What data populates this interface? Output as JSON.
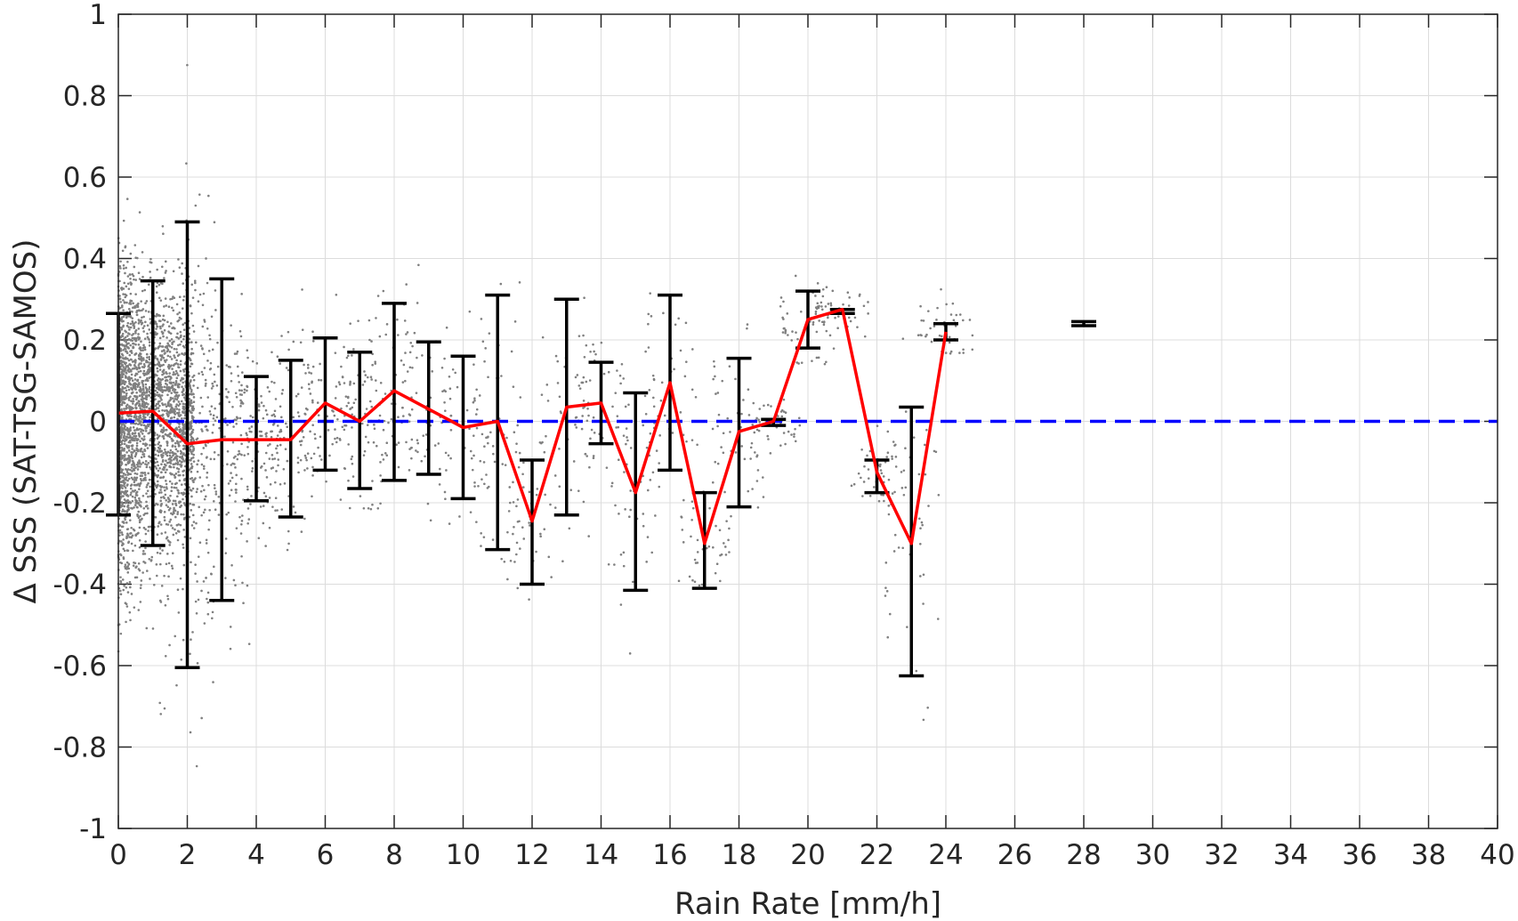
{
  "chart_data": {
    "type": "scatter",
    "xlabel": "Rain Rate [mm/h]",
    "ylabel": "Δ SSS (SAT-TSG-SAMOS)",
    "xlim": [
      0,
      40
    ],
    "ylim": [
      -1,
      1
    ],
    "x_ticks": [
      "0",
      "2",
      "4",
      "6",
      "8",
      "10",
      "12",
      "14",
      "16",
      "18",
      "20",
      "22",
      "24",
      "26",
      "28",
      "30",
      "32",
      "34",
      "36",
      "38",
      "40"
    ],
    "y_ticks": [
      "1",
      "0.8",
      "0.6",
      "0.4",
      "0.2",
      "0",
      "-0.2",
      "-0.4",
      "-0.6",
      "-0.8",
      "-1"
    ],
    "grid": true,
    "colors": {
      "scatter": "#808080",
      "mean_line": "#ff0000",
      "error_bar": "#000000",
      "zero_line": "#0000ff"
    },
    "mean_series": {
      "x": [
        0,
        1,
        2,
        3,
        4,
        5,
        6,
        7,
        8,
        9,
        10,
        11,
        12,
        13,
        14,
        15,
        16,
        17,
        18,
        19,
        20,
        21,
        22,
        23,
        24
      ],
      "y": [
        0.02,
        0.025,
        -0.055,
        -0.045,
        -0.045,
        -0.045,
        0.045,
        0.0,
        0.075,
        0.03,
        -0.015,
        0.0,
        -0.245,
        0.035,
        0.045,
        -0.175,
        0.095,
        -0.3,
        -0.025,
        0.0,
        0.25,
        0.275,
        -0.125,
        -0.3,
        0.22
      ]
    },
    "error_bars": [
      {
        "x": 0,
        "low": -0.23,
        "high": 0.265
      },
      {
        "x": 1,
        "low": -0.305,
        "high": 0.345
      },
      {
        "x": 2,
        "low": -0.605,
        "high": 0.49
      },
      {
        "x": 3,
        "low": -0.44,
        "high": 0.35
      },
      {
        "x": 4,
        "low": -0.195,
        "high": 0.11
      },
      {
        "x": 5,
        "low": -0.235,
        "high": 0.15
      },
      {
        "x": 6,
        "low": -0.12,
        "high": 0.205
      },
      {
        "x": 7,
        "low": -0.165,
        "high": 0.17
      },
      {
        "x": 8,
        "low": -0.145,
        "high": 0.29
      },
      {
        "x": 9,
        "low": -0.13,
        "high": 0.195
      },
      {
        "x": 10,
        "low": -0.19,
        "high": 0.16
      },
      {
        "x": 11,
        "low": -0.315,
        "high": 0.31
      },
      {
        "x": 12,
        "low": -0.4,
        "high": -0.095
      },
      {
        "x": 13,
        "low": -0.23,
        "high": 0.3
      },
      {
        "x": 14,
        "low": -0.055,
        "high": 0.145
      },
      {
        "x": 15,
        "low": -0.415,
        "high": 0.07
      },
      {
        "x": 16,
        "low": -0.12,
        "high": 0.31
      },
      {
        "x": 17,
        "low": -0.41,
        "high": -0.175
      },
      {
        "x": 18,
        "low": -0.21,
        "high": 0.155
      },
      {
        "x": 19,
        "low": -0.01,
        "high": 0.005
      },
      {
        "x": 20,
        "low": 0.18,
        "high": 0.32
      },
      {
        "x": 21,
        "low": 0.265,
        "high": 0.275
      },
      {
        "x": 22,
        "low": -0.175,
        "high": -0.095
      },
      {
        "x": 23,
        "low": -0.625,
        "high": 0.035
      },
      {
        "x": 24,
        "low": 0.2,
        "high": 0.24
      },
      {
        "x": 28,
        "low": 0.235,
        "high": 0.245
      }
    ],
    "reference_line": {
      "y": 0,
      "style": "dashed"
    }
  }
}
